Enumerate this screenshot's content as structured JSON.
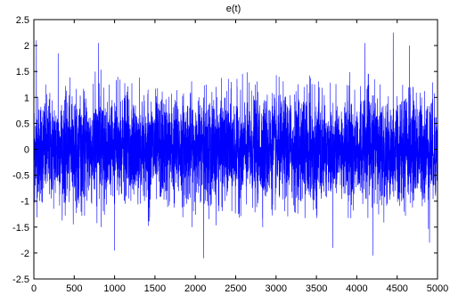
{
  "chart_data": {
    "type": "line",
    "title": "e(t)",
    "xlabel": "",
    "ylabel": "",
    "xlim": [
      0,
      5000
    ],
    "ylim": [
      -2.5,
      2.5
    ],
    "xticks": [
      0,
      500,
      1000,
      1500,
      2000,
      2500,
      3000,
      3500,
      4000,
      4500,
      5000
    ],
    "yticks": [
      2.5,
      2,
      1.5,
      1,
      0.5,
      0,
      -0.5,
      -1,
      -1.5,
      -2,
      -2.5
    ],
    "xtick_labels": [
      "0",
      "500",
      "1000",
      "1500",
      "2000",
      "2500",
      "3000",
      "3500",
      "4000",
      "4500",
      "5000"
    ],
    "ytick_labels": [
      "2.5",
      "2",
      "1.5",
      "1",
      "0.5",
      "0",
      "-0.5",
      "-1",
      "-1.5",
      "-2",
      "-2.5"
    ],
    "grid": false,
    "series": [
      {
        "color": "#0000ff",
        "description": "dense noise signal, 5000 samples, mostly within ±1.3",
        "notable_points": [
          {
            "x": 30,
            "y": 2.1
          },
          {
            "x": 300,
            "y": 1.85
          },
          {
            "x": 800,
            "y": 2.05
          },
          {
            "x": 2100,
            "y": -2.1
          },
          {
            "x": 4100,
            "y": 2.05
          },
          {
            "x": 4450,
            "y": 2.25
          },
          {
            "x": 4650,
            "y": 2.0
          },
          {
            "x": 4200,
            "y": -2.05
          },
          {
            "x": 3700,
            "y": -1.9
          },
          {
            "x": 4900,
            "y": -1.8
          },
          {
            "x": 1000,
            "y": -1.95
          }
        ]
      }
    ]
  }
}
